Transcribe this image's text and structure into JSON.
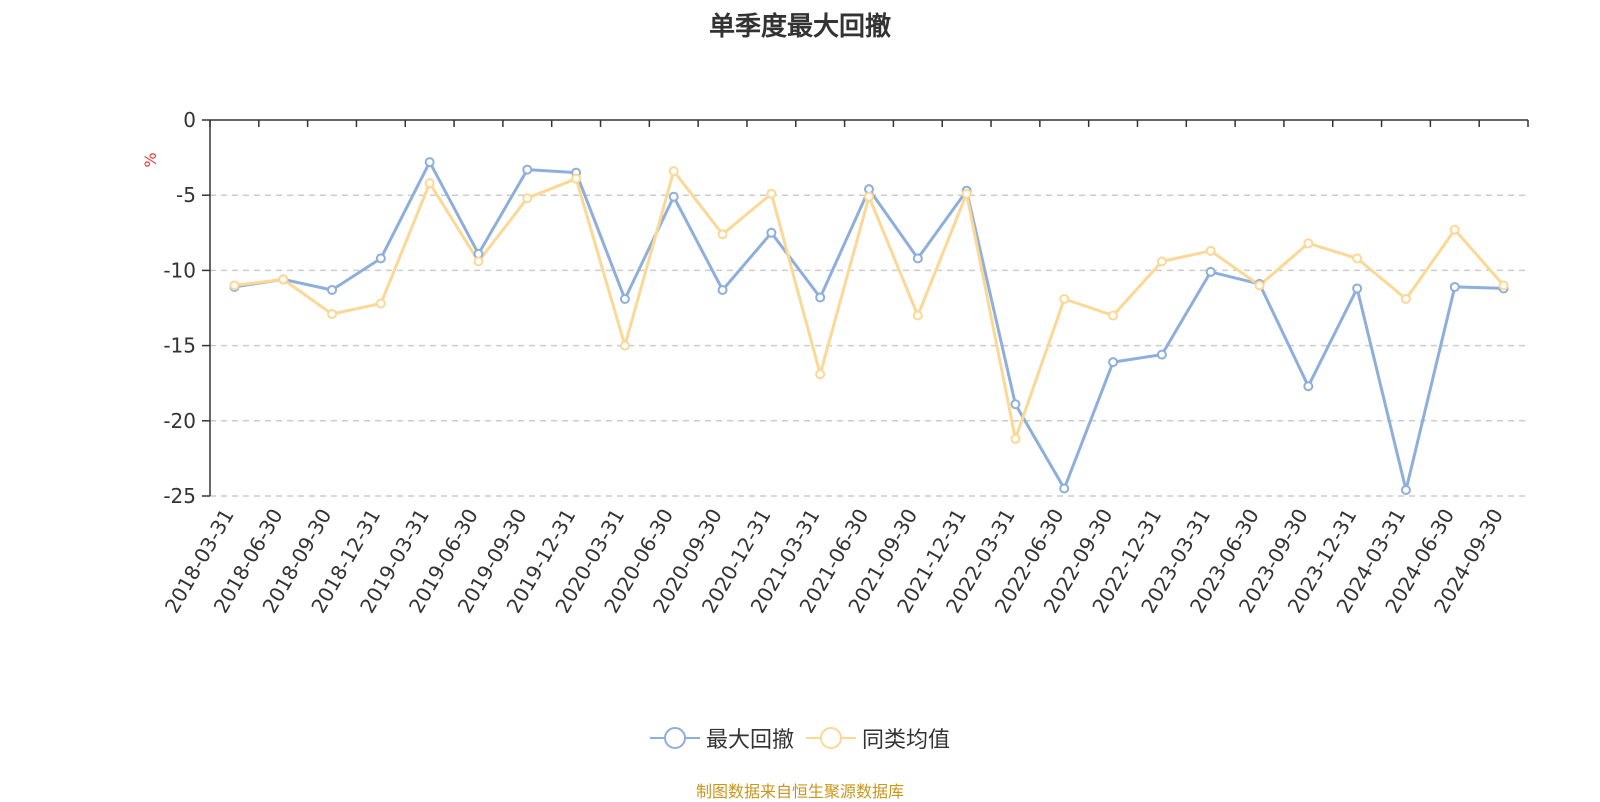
{
  "chart_data": {
    "type": "line",
    "title": "单季度最大回撤",
    "ylabel": "%",
    "xlabel": "",
    "ylim": [
      -25,
      0
    ],
    "yticks": [
      0,
      -5,
      -10,
      -15,
      -20,
      -25
    ],
    "grid": true,
    "legend_position": "bottom",
    "categories": [
      "2018-03-31",
      "2018-06-30",
      "2018-09-30",
      "2018-12-31",
      "2019-03-31",
      "2019-06-30",
      "2019-09-30",
      "2019-12-31",
      "2020-03-31",
      "2020-06-30",
      "2020-09-30",
      "2020-12-31",
      "2021-03-31",
      "2021-06-30",
      "2021-09-30",
      "2021-12-31",
      "2022-03-31",
      "2022-06-30",
      "2022-09-30",
      "2022-12-31",
      "2023-03-31",
      "2023-06-30",
      "2023-09-30",
      "2023-12-31",
      "2024-03-31",
      "2024-06-30",
      "2024-09-30"
    ],
    "series": [
      {
        "name": "最大回撤",
        "color": "#8eaedb",
        "values": [
          -11.1,
          -10.6,
          -11.3,
          -9.2,
          -2.8,
          -8.9,
          -3.3,
          -3.5,
          -11.9,
          -5.1,
          -11.3,
          -7.5,
          -11.8,
          -4.6,
          -9.2,
          -4.7,
          -18.9,
          -24.5,
          -16.1,
          -15.6,
          -10.1,
          -10.9,
          -17.7,
          -11.2,
          -24.6,
          -11.1,
          -11.2
        ]
      },
      {
        "name": "同类均值",
        "color": "#fcd896",
        "values": [
          -11.0,
          -10.6,
          -12.9,
          -12.2,
          -4.2,
          -9.4,
          -5.2,
          -3.9,
          -15.0,
          -3.4,
          -7.6,
          -4.9,
          -16.9,
          -5.1,
          -13.0,
          -4.9,
          -21.2,
          -11.9,
          -13.0,
          -9.4,
          -8.7,
          -11.0,
          -8.2,
          -9.2,
          -11.9,
          -7.3,
          -11.0
        ]
      }
    ]
  },
  "source_note": "制图数据来自恒生聚源数据库"
}
